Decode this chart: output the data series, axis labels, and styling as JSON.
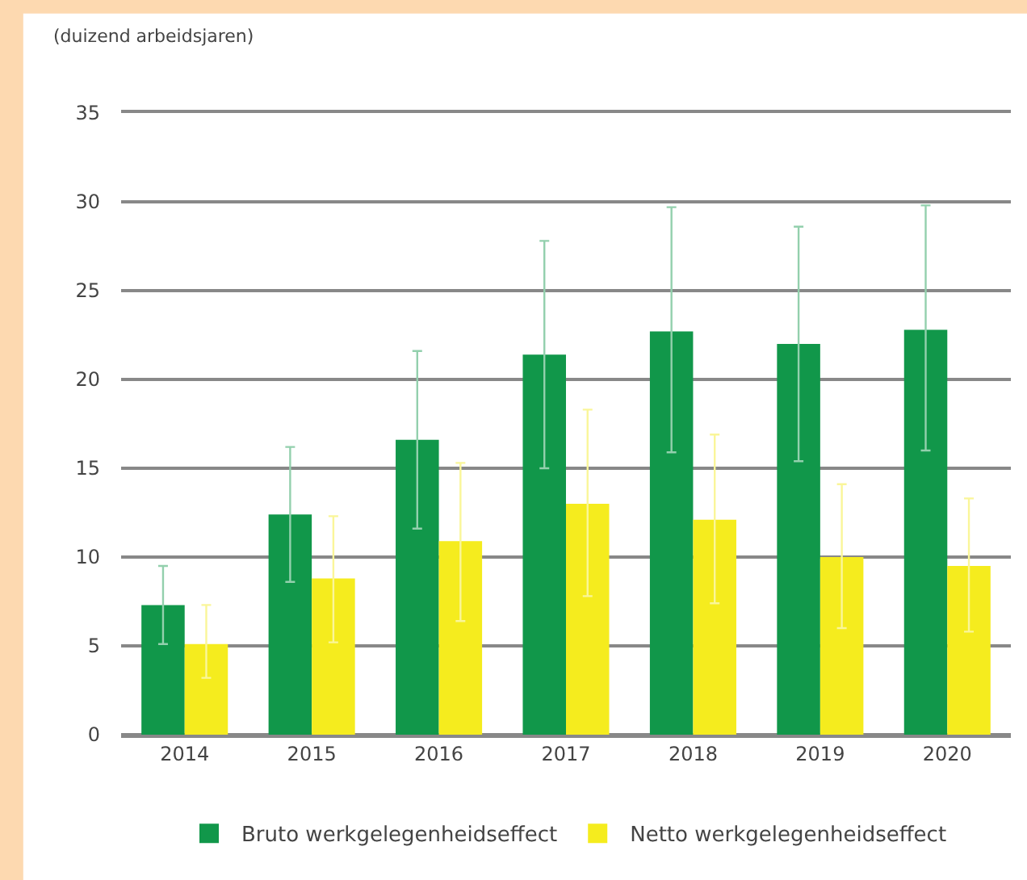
{
  "chart_data": {
    "type": "bar",
    "ylabel": "(duizend arbeidsjaren)",
    "categories": [
      "2014",
      "2015",
      "2016",
      "2017",
      "2018",
      "2019",
      "2020"
    ],
    "series": [
      {
        "name": "Bruto werkgelegenheidseffect",
        "color": "#11974a",
        "values": [
          7.3,
          12.4,
          16.6,
          21.4,
          22.7,
          22.0,
          22.8
        ],
        "errors": [
          [
            5.1,
            9.5
          ],
          [
            8.6,
            16.2
          ],
          [
            11.6,
            21.6
          ],
          [
            15.0,
            27.8
          ],
          [
            15.9,
            29.7
          ],
          [
            15.4,
            28.6
          ],
          [
            16.0,
            29.8
          ]
        ]
      },
      {
        "name": "Netto werkgelegenheidseffect",
        "color": "#f5ec1e",
        "values": [
          5.1,
          8.8,
          10.9,
          13.0,
          12.1,
          10.0,
          9.5
        ],
        "errors": [
          [
            3.2,
            7.3
          ],
          [
            5.2,
            12.3
          ],
          [
            6.4,
            15.3
          ],
          [
            7.8,
            18.3
          ],
          [
            7.4,
            16.9
          ],
          [
            6.0,
            14.1
          ],
          [
            5.8,
            13.3
          ]
        ]
      }
    ],
    "ylim": [
      0,
      35
    ],
    "yticks": [
      0,
      5,
      10,
      15,
      20,
      25,
      30,
      35
    ],
    "grid": "y",
    "legend": "bottom"
  }
}
